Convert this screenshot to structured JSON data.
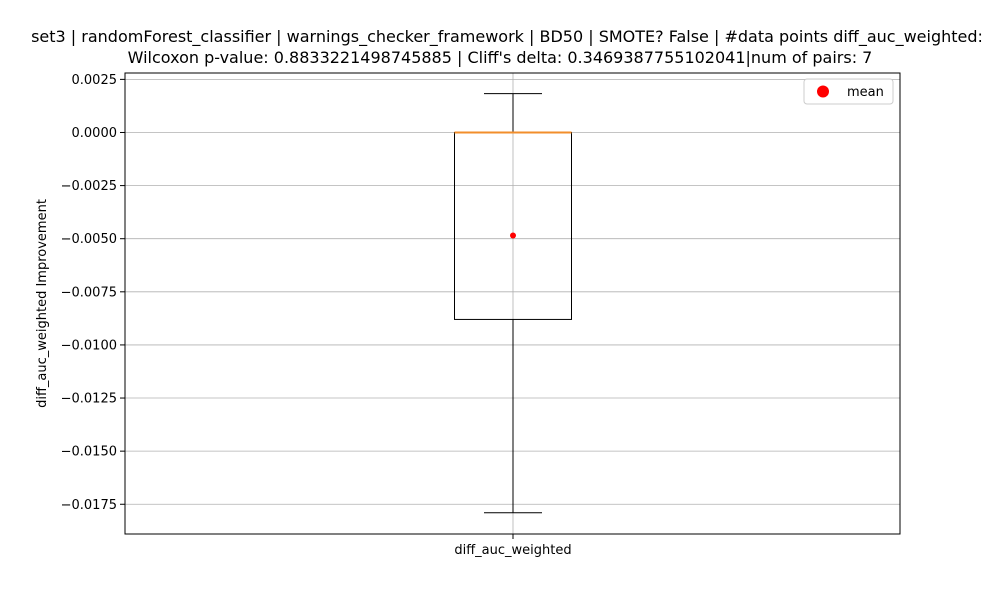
{
  "chart_data": {
    "type": "box",
    "title_line1": "set3 | randomForest_classifier | warnings_checker_framework | BD50 | SMOTE? False | #data points diff_auc_weighted:",
    "title_line2": "Wilcoxon p-value: 0.8833221498745885 | Cliff's delta: 0.3469387755102041|num of pairs: 7",
    "xlabel": "",
    "ylabel": "diff_auc_weighted Improvement",
    "categories": [
      "diff_auc_weighted"
    ],
    "ylim": [
      -0.0189,
      0.0028
    ],
    "yticks": [
      0.0025,
      0.0,
      -0.0025,
      -0.005,
      -0.0075,
      -0.01,
      -0.0125,
      -0.015,
      -0.0175
    ],
    "ytick_labels": [
      "0.0025",
      "0.0000",
      "−0.0025",
      "−0.0050",
      "−0.0075",
      "−0.0100",
      "−0.0125",
      "−0.0150",
      "−0.0175"
    ],
    "grid": true,
    "legend": {
      "placement": "top-right",
      "entries": [
        "mean"
      ]
    },
    "box": {
      "whisker_low": -0.0179,
      "q1": -0.0088,
      "median": 0.0,
      "q3": 0.0,
      "whisker_high": 0.00183,
      "mean": -0.00485
    },
    "colors": {
      "median": "#f28e2b",
      "mean": "#ff0000",
      "grid": "#b0b0b0",
      "axis": "#000000"
    }
  }
}
